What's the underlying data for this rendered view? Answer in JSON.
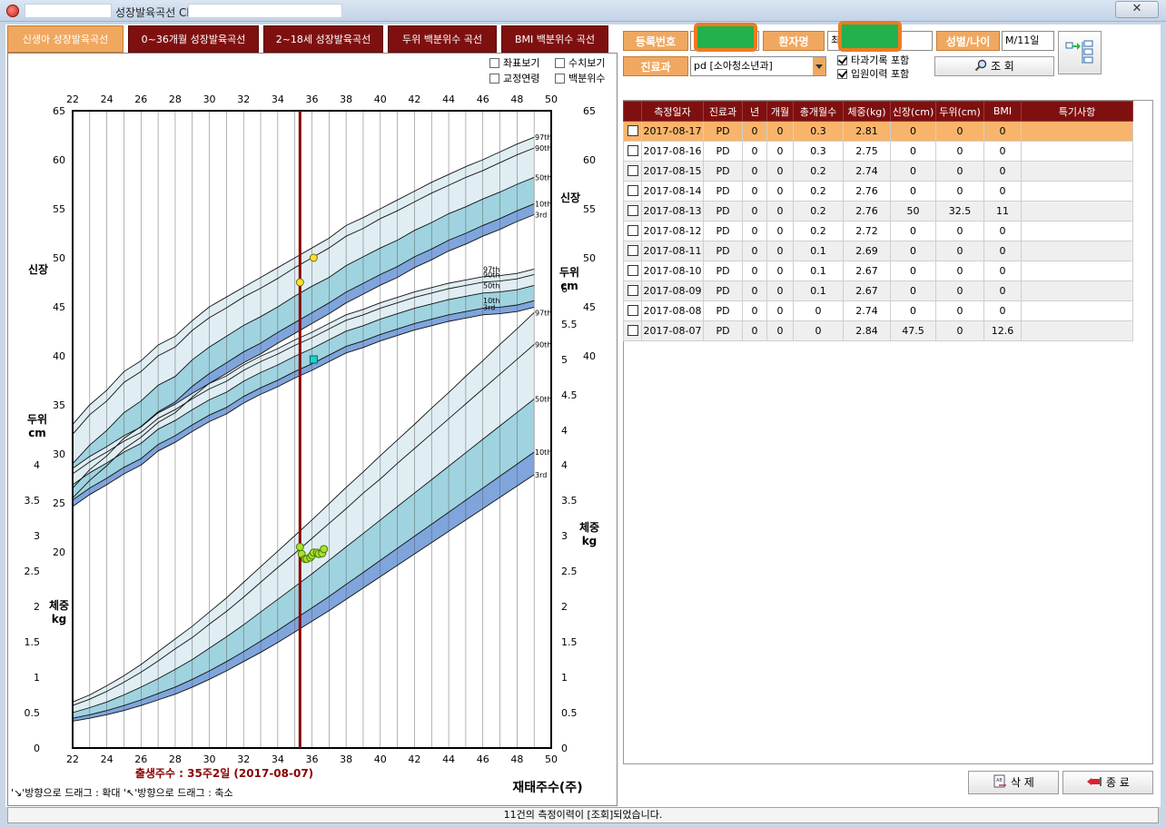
{
  "window": {
    "title": "성장발육곡선 Chart",
    "close_label": "✕"
  },
  "tabs": [
    {
      "label": "신생아 성장발육곡선",
      "active": true
    },
    {
      "label": "0~36개월 성장발육곡선",
      "active": false
    },
    {
      "label": "2~18세 성장발육곡선",
      "active": false
    },
    {
      "label": "두위 백분위수 곡선",
      "active": false
    },
    {
      "label": "BMI 백분위수 곡선",
      "active": false
    }
  ],
  "chart_options": {
    "coords": {
      "label": "좌표보기",
      "checked": false
    },
    "values": {
      "label": "수치보기",
      "checked": false
    },
    "corrected_age": {
      "label": "교정연령",
      "checked": false
    },
    "percentile": {
      "label": "백분위수",
      "checked": false
    }
  },
  "chart_data": {
    "type": "line",
    "x_label": "재태주수(주)",
    "x_ticks": [
      22,
      24,
      26,
      28,
      30,
      32,
      34,
      36,
      38,
      40,
      42,
      44,
      46,
      48,
      50
    ],
    "xlim": [
      22,
      50
    ],
    "left_axis_top": {
      "ylim": [
        0,
        65
      ],
      "ticks": [
        20,
        25,
        30,
        35,
        40,
        45,
        50,
        55,
        60,
        65
      ]
    },
    "left_axis_bottom": {
      "ylim": [
        0,
        4
      ],
      "ticks": [
        0,
        0.5,
        1,
        1.5,
        2,
        2.5,
        3,
        3.5,
        4
      ]
    },
    "right_axis_top": {
      "ticks": [
        40,
        45,
        50,
        55,
        60,
        65
      ]
    },
    "right_axis_mid": {
      "ticks": [
        4,
        4.5,
        5,
        5.5,
        6
      ]
    },
    "right_axis_bottom": {
      "ticks": [
        0,
        0.5,
        1,
        1.5,
        2,
        2.5,
        3,
        3.5,
        4
      ]
    },
    "axis_titles": {
      "height_left": "신장",
      "height_right": "신장",
      "head_left": [
        "두위",
        "cm"
      ],
      "head_right": [
        "두위",
        "cm"
      ],
      "weight_left": [
        "체중",
        "kg"
      ],
      "weight_right": [
        "체중",
        "kg"
      ]
    },
    "percentile_labels": [
      "97th",
      "90th",
      "50th",
      "10th",
      "3rd"
    ],
    "birth_marker": {
      "week": 35.3,
      "label": "출생주수 : 35주2일 (2017-08-07)"
    },
    "height_curves": {
      "x": [
        22,
        23,
        24,
        25,
        26,
        27,
        28,
        29,
        30,
        31,
        32,
        33,
        34,
        35,
        36,
        37,
        38,
        39,
        40,
        41,
        42,
        43,
        44,
        45,
        46,
        47,
        48,
        49
      ],
      "p97": [
        33.0,
        35.0,
        36.5,
        38.4,
        39.5,
        41.1,
        42.0,
        43.6,
        45.0,
        46.0,
        47.0,
        48.0,
        49.0,
        50.0,
        51.0,
        52.0,
        53.3,
        54.1,
        55.0,
        55.9,
        56.8,
        57.7,
        58.5,
        59.3,
        60.0,
        60.8,
        61.6,
        62.3
      ],
      "p90": [
        32.0,
        34.0,
        35.4,
        37.3,
        38.4,
        40.0,
        40.9,
        42.6,
        43.9,
        44.9,
        46.0,
        46.9,
        47.9,
        49.0,
        50.0,
        51.0,
        52.2,
        53.0,
        54.0,
        54.8,
        55.7,
        56.6,
        57.4,
        58.2,
        58.9,
        59.7,
        60.5,
        61.2
      ],
      "p50": [
        29.0,
        30.9,
        32.4,
        34.2,
        35.4,
        37.0,
        37.9,
        39.6,
        40.9,
        42.0,
        43.1,
        44.0,
        45.0,
        46.1,
        47.1,
        48.0,
        49.2,
        50.1,
        51.0,
        51.8,
        52.8,
        53.6,
        54.5,
        55.2,
        56.0,
        56.7,
        57.5,
        58.2
      ],
      "p10": [
        26.5,
        28.4,
        29.8,
        31.6,
        32.8,
        34.3,
        35.3,
        36.9,
        38.2,
        39.3,
        40.4,
        41.3,
        42.4,
        43.4,
        44.4,
        45.4,
        46.5,
        47.4,
        48.3,
        49.1,
        50.1,
        50.9,
        51.8,
        52.5,
        53.3,
        54.0,
        54.8,
        55.5
      ],
      "p3": [
        25.5,
        27.3,
        28.8,
        30.5,
        31.7,
        33.2,
        34.2,
        35.8,
        37.2,
        38.2,
        39.3,
        40.2,
        41.3,
        42.3,
        43.3,
        44.3,
        45.4,
        46.3,
        47.2,
        48.0,
        49.0,
        49.8,
        50.7,
        51.4,
        52.2,
        52.9,
        53.7,
        54.4
      ]
    },
    "head_curves": {
      "x": [
        22,
        23,
        24,
        25,
        26,
        27,
        28,
        29,
        30,
        31,
        32,
        33,
        34,
        35,
        36,
        37,
        38,
        39,
        40,
        41,
        42,
        43,
        44,
        45,
        46,
        47,
        48,
        49
      ],
      "p97": [
        22.5,
        23.6,
        24.5,
        25.5,
        26.3,
        27.6,
        28.4,
        29.4,
        30.3,
        31.0,
        32.0,
        32.8,
        33.5,
        34.3,
        35.0,
        35.8,
        36.6,
        37.1,
        37.7,
        38.2,
        38.7,
        39.1,
        39.5,
        39.8,
        40.1,
        40.2,
        40.4,
        40.8
      ],
      "p90": [
        22.0,
        23.1,
        24.0,
        25.0,
        25.8,
        27.1,
        27.9,
        28.9,
        29.8,
        30.5,
        31.5,
        32.3,
        33.0,
        33.8,
        34.5,
        35.3,
        36.1,
        36.6,
        37.2,
        37.7,
        38.2,
        38.6,
        39.0,
        39.3,
        39.6,
        39.7,
        39.9,
        40.3
      ],
      "p50": [
        21.0,
        22.1,
        23.0,
        24.0,
        24.8,
        26.1,
        26.9,
        27.9,
        28.8,
        29.5,
        30.5,
        31.3,
        32.0,
        32.8,
        33.5,
        34.3,
        35.1,
        35.6,
        36.2,
        36.7,
        37.2,
        37.6,
        38.0,
        38.3,
        38.6,
        38.7,
        38.9,
        39.3
      ],
      "p10": [
        19.6,
        20.7,
        21.6,
        22.6,
        23.4,
        24.7,
        25.5,
        26.5,
        27.4,
        28.1,
        29.1,
        29.9,
        30.6,
        31.4,
        32.1,
        32.9,
        33.7,
        34.2,
        34.8,
        35.3,
        35.8,
        36.2,
        36.6,
        36.9,
        37.2,
        37.3,
        37.5,
        37.9
      ],
      "p3": [
        19.0,
        20.1,
        21.0,
        22.0,
        22.8,
        24.1,
        24.9,
        25.9,
        26.8,
        27.5,
        28.5,
        29.3,
        30.0,
        30.8,
        31.5,
        32.3,
        33.1,
        33.6,
        34.2,
        34.7,
        35.2,
        35.6,
        36.0,
        36.3,
        36.6,
        36.7,
        36.9,
        37.3
      ]
    },
    "weight_curves": {
      "x": [
        22,
        23,
        24,
        25,
        26,
        27,
        28,
        29,
        30,
        31,
        32,
        33,
        34,
        35,
        36,
        37,
        38,
        39,
        40,
        41,
        42,
        43,
        44,
        45,
        46,
        47,
        48,
        49
      ],
      "p97": [
        0.65,
        0.75,
        0.88,
        1.02,
        1.18,
        1.36,
        1.54,
        1.72,
        1.92,
        2.12,
        2.34,
        2.56,
        2.78,
        3.0,
        3.22,
        3.45,
        3.68,
        3.9,
        4.13,
        4.35,
        4.57,
        4.8,
        5.02,
        5.25,
        5.47,
        5.7,
        5.92,
        6.15
      ],
      "p90": [
        0.6,
        0.69,
        0.8,
        0.93,
        1.07,
        1.23,
        1.4,
        1.56,
        1.75,
        1.93,
        2.13,
        2.34,
        2.55,
        2.75,
        2.96,
        3.17,
        3.38,
        3.6,
        3.8,
        4.02,
        4.23,
        4.44,
        4.65,
        4.86,
        5.07,
        5.28,
        5.49,
        5.7
      ],
      "p50": [
        0.5,
        0.57,
        0.65,
        0.75,
        0.86,
        0.98,
        1.11,
        1.25,
        1.41,
        1.57,
        1.74,
        1.92,
        2.1,
        2.28,
        2.46,
        2.65,
        2.84,
        3.03,
        3.22,
        3.41,
        3.6,
        3.79,
        3.98,
        4.17,
        4.36,
        4.55,
        4.74,
        4.93
      ],
      "p10": [
        0.42,
        0.47,
        0.53,
        0.6,
        0.68,
        0.77,
        0.86,
        0.97,
        1.09,
        1.22,
        1.36,
        1.51,
        1.66,
        1.82,
        1.98,
        2.14,
        2.31,
        2.48,
        2.65,
        2.82,
        2.99,
        3.16,
        3.33,
        3.5,
        3.67,
        3.84,
        4.01,
        4.18
      ],
      "p3": [
        0.38,
        0.42,
        0.47,
        0.53,
        0.6,
        0.68,
        0.76,
        0.86,
        0.97,
        1.09,
        1.22,
        1.35,
        1.49,
        1.64,
        1.79,
        1.94,
        2.1,
        2.26,
        2.42,
        2.58,
        2.74,
        2.9,
        3.06,
        3.22,
        3.38,
        3.54,
        3.7,
        3.86
      ]
    },
    "height_points": [
      {
        "x": 35.3,
        "y": 47.5
      },
      {
        "x": 36.1,
        "y": 50.0
      }
    ],
    "head_points": [
      {
        "x": 36.1,
        "y": 32.5
      }
    ],
    "weight_points": [
      {
        "x": 35.3,
        "y": 2.84
      },
      {
        "x": 35.4,
        "y": 2.74
      },
      {
        "x": 35.6,
        "y": 2.67
      },
      {
        "x": 35.7,
        "y": 2.67
      },
      {
        "x": 35.9,
        "y": 2.69
      },
      {
        "x": 36.0,
        "y": 2.72
      },
      {
        "x": 36.1,
        "y": 2.76
      },
      {
        "x": 36.3,
        "y": 2.76
      },
      {
        "x": 36.4,
        "y": 2.74
      },
      {
        "x": 36.6,
        "y": 2.75
      },
      {
        "x": 36.7,
        "y": 2.81
      }
    ],
    "colors": {
      "band_outer": "#e0eef4",
      "band_inner": "#9fd3df",
      "band_low": "#7fa5dc",
      "birth_line": "#8b0000",
      "height_point": "#ffe030",
      "head_point": "#20d0d0",
      "weight_point": "#a8e030"
    }
  },
  "chart_hint": {
    "text": "'↘'방향으로 드래그 : 확대  '↖'방향으로 드래그 :  축소"
  },
  "patient": {
    "reg_no_label": "등록번호",
    "name_label": "환자명",
    "name_value": "최",
    "sex_age_label": "성별/나이",
    "sex_age_value": "M/11일",
    "dept_label": "진료과",
    "dept_value": "pd [소아청소년과]",
    "include_other_dept": {
      "label": "타과기록 포함",
      "checked": true
    },
    "include_inpatient": {
      "label": "입원이력 포함",
      "checked": true
    },
    "search_label": "조 회"
  },
  "table": {
    "columns": [
      "측정일자",
      "진료과",
      "년",
      "개월",
      "총개월수",
      "체중(kg)",
      "신장(cm)",
      "두위(cm)",
      "BMI",
      "특기사항"
    ],
    "rows": [
      [
        "2017-08-17",
        "PD",
        "0",
        "0",
        "0.3",
        "2.81",
        "0",
        "0",
        "0",
        ""
      ],
      [
        "2017-08-16",
        "PD",
        "0",
        "0",
        "0.3",
        "2.75",
        "0",
        "0",
        "0",
        ""
      ],
      [
        "2017-08-15",
        "PD",
        "0",
        "0",
        "0.2",
        "2.74",
        "0",
        "0",
        "0",
        ""
      ],
      [
        "2017-08-14",
        "PD",
        "0",
        "0",
        "0.2",
        "2.76",
        "0",
        "0",
        "0",
        ""
      ],
      [
        "2017-08-13",
        "PD",
        "0",
        "0",
        "0.2",
        "2.76",
        "50",
        "32.5",
        "11",
        ""
      ],
      [
        "2017-08-12",
        "PD",
        "0",
        "0",
        "0.2",
        "2.72",
        "0",
        "0",
        "0",
        ""
      ],
      [
        "2017-08-11",
        "PD",
        "0",
        "0",
        "0.1",
        "2.69",
        "0",
        "0",
        "0",
        ""
      ],
      [
        "2017-08-10",
        "PD",
        "0",
        "0",
        "0.1",
        "2.67",
        "0",
        "0",
        "0",
        ""
      ],
      [
        "2017-08-09",
        "PD",
        "0",
        "0",
        "0.1",
        "2.67",
        "0",
        "0",
        "0",
        ""
      ],
      [
        "2017-08-08",
        "PD",
        "0",
        "0",
        "0",
        "2.74",
        "0",
        "0",
        "0",
        ""
      ],
      [
        "2017-08-07",
        "PD",
        "0",
        "0",
        "0",
        "2.84",
        "47.5",
        "0",
        "12.6",
        ""
      ]
    ]
  },
  "footer": {
    "delete_label": "삭 제",
    "close_label": "종 료"
  },
  "status": {
    "text": "11건의 측정이력이 [조회]되었습니다."
  }
}
